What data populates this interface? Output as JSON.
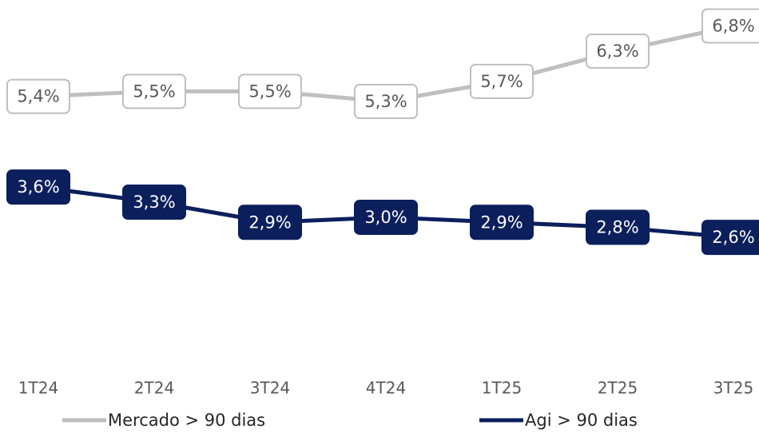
{
  "chart_data": {
    "type": "line",
    "categories": [
      "1T24",
      "2T24",
      "3T24",
      "4T24",
      "1T25",
      "2T25",
      "3T25"
    ],
    "series": [
      {
        "name": "Mercado > 90 dias",
        "color": "#bfbfbf",
        "values": [
          5.4,
          5.5,
          5.5,
          5.3,
          5.7,
          6.3,
          6.8
        ],
        "value_labels": [
          "5,4%",
          "5,5%",
          "5,5%",
          "5,3%",
          "5,7%",
          "6,3%",
          "6,8%"
        ]
      },
      {
        "name": "Agi > 90 dias",
        "color": "#0b1f5c",
        "values": [
          3.6,
          3.3,
          2.9,
          3.0,
          2.9,
          2.8,
          2.6
        ],
        "value_labels": [
          "3,6%",
          "3,3%",
          "2,9%",
          "3,0%",
          "2,9%",
          "2,8%",
          "2,6%"
        ]
      }
    ],
    "ylim": [
      0,
      7.3
    ],
    "legend": "bottom"
  }
}
